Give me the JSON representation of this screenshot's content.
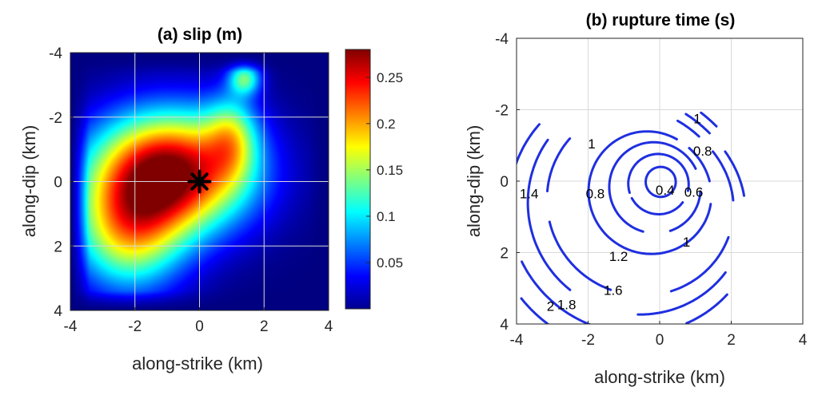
{
  "chart_data": [
    {
      "type": "heatmap",
      "title": "(a) slip (m)",
      "xlabel": "along-strike (km)",
      "ylabel": "along-dip (km)",
      "xlim": [
        -4,
        4
      ],
      "ylim": [
        -4,
        4
      ],
      "y_axis_reversed": true,
      "x_ticks": [
        "-4",
        "-2",
        "0",
        "2",
        "4"
      ],
      "y_ticks": [
        "-4",
        "-2",
        "0",
        "2",
        "4"
      ],
      "grid": true,
      "colormap": "jet",
      "colorbar": {
        "range": [
          0,
          0.28
        ],
        "ticks": [
          "0.05",
          "0.1",
          "0.15",
          "0.2",
          "0.25"
        ],
        "tick_values": [
          0.05,
          0.1,
          0.15,
          0.2,
          0.25
        ]
      },
      "peak_slip": 0.28,
      "peak_location": {
        "x": -0.9,
        "y": -0.3
      },
      "secondary_patch": {
        "x": 1.4,
        "y": -3.2,
        "slip": 0.12
      },
      "hypocenter": {
        "x": 0,
        "y": 0,
        "symbol": "asterisk"
      }
    },
    {
      "type": "line",
      "subtype": "contour",
      "title": "(b) rupture time (s)",
      "xlabel": "along-strike (km)",
      "ylabel": "along-dip (km)",
      "xlim": [
        -4,
        4
      ],
      "ylim": [
        -4,
        4
      ],
      "y_axis_reversed": true,
      "x_ticks": [
        "-4",
        "-2",
        "0",
        "2",
        "4"
      ],
      "y_ticks": [
        "-4",
        "-2",
        "0",
        "2",
        "4"
      ],
      "grid": true,
      "line_color": "#1f2fe0",
      "contour_levels": [
        0.2,
        0.4,
        0.6,
        0.8,
        1,
        1.2,
        1.4,
        1.6,
        1.8,
        2
      ],
      "contour_labels": [
        {
          "text": "0.4",
          "x": 0.15,
          "y": 0.25
        },
        {
          "text": "0.6",
          "x": 0.95,
          "y": 0.3
        },
        {
          "text": "0.8",
          "x": 1.2,
          "y": -0.85
        },
        {
          "text": "0.8",
          "x": -1.8,
          "y": 0.35
        },
        {
          "text": "1",
          "x": 1.05,
          "y": -1.75
        },
        {
          "text": "1",
          "x": -1.9,
          "y": -1.05
        },
        {
          "text": "1",
          "x": 0.75,
          "y": 1.7
        },
        {
          "text": "1.2",
          "x": -1.15,
          "y": 2.1
        },
        {
          "text": "1.4",
          "x": -3.65,
          "y": 0.35
        },
        {
          "text": "1.6",
          "x": -1.3,
          "y": 3.05
        },
        {
          "text": "1.8",
          "x": -2.6,
          "y": 3.45
        },
        {
          "text": "2",
          "x": -3.05,
          "y": 3.5
        }
      ]
    }
  ]
}
